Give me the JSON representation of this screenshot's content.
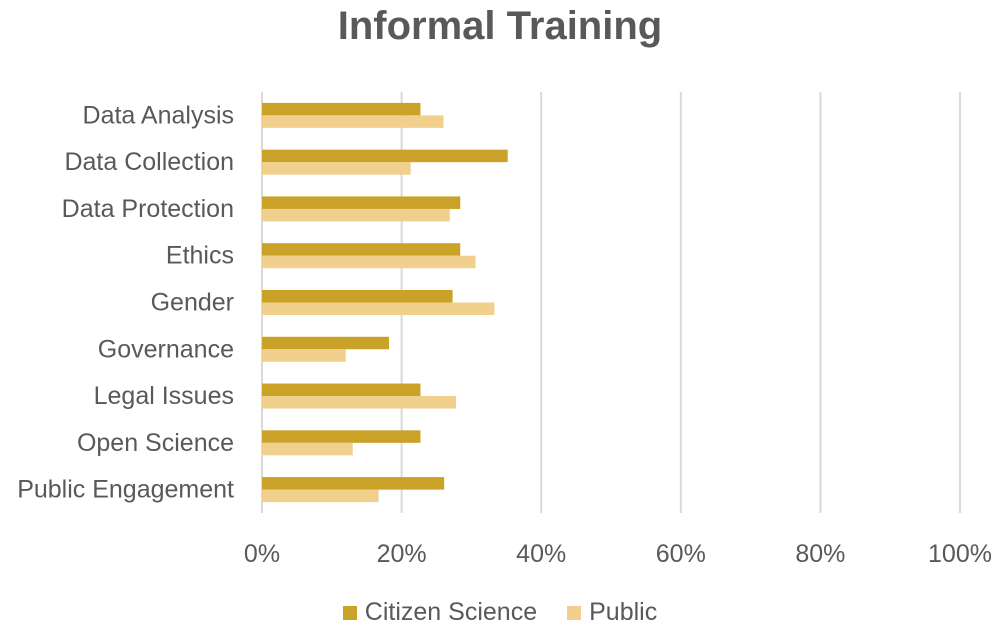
{
  "chart_data": {
    "type": "bar",
    "orientation": "horizontal",
    "title": "Informal Training",
    "categories": [
      "Data Analysis",
      "Data Collection",
      "Data Protection",
      "Ethics",
      "Gender",
      "Governance",
      "Legal Issues",
      "Open Science",
      "Public Engagement"
    ],
    "series": [
      {
        "name": "Citizen Science",
        "color": "#C9A227",
        "values": [
          22.7,
          35.2,
          28.4,
          28.4,
          27.3,
          18.2,
          22.7,
          22.7,
          26.1
        ]
      },
      {
        "name": "Public",
        "color": "#F0D08C",
        "values": [
          26.0,
          21.3,
          26.9,
          30.6,
          33.3,
          12.0,
          27.8,
          13.0,
          16.7
        ]
      }
    ],
    "xlim": [
      0,
      100
    ],
    "xticks": [
      "0%",
      "20%",
      "40%",
      "60%",
      "80%",
      "100%"
    ],
    "xtick_values": [
      0,
      20,
      40,
      60,
      80,
      100
    ],
    "grid": true,
    "legend_position": "bottom"
  }
}
